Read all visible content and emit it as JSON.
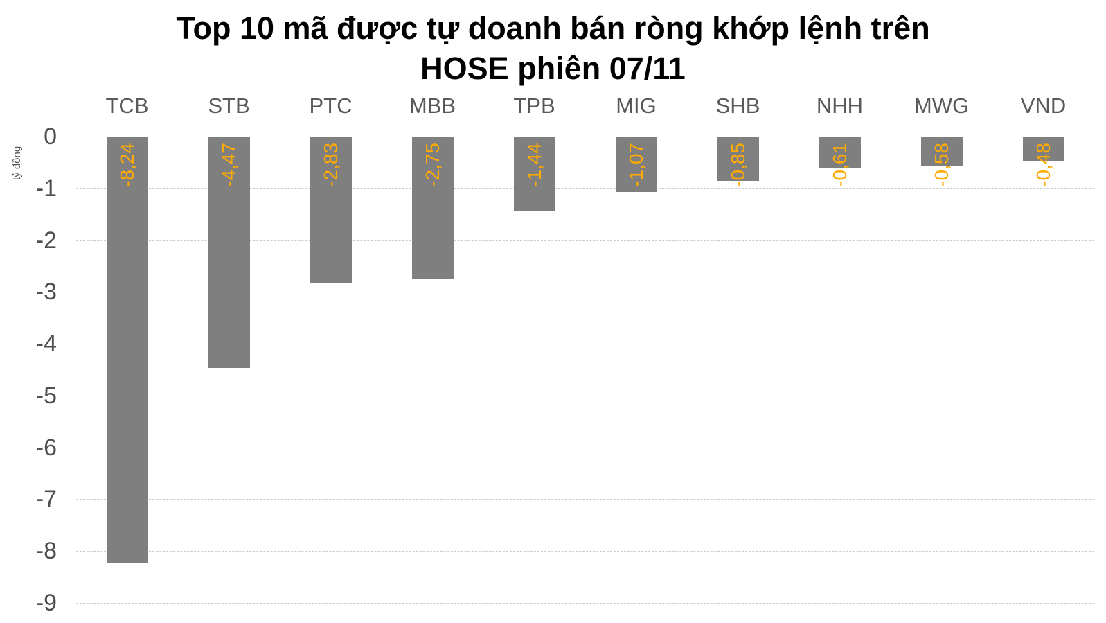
{
  "chart_data": {
    "type": "bar",
    "orientation": "vertical",
    "title": "Top 10 mã được tự doanh bán ròng khớp lệnh trên HOSE phiên 07/11",
    "title_lines": [
      "Top 10 mã được tự doanh bán ròng khớp lệnh trên",
      "HOSE phiên 07/11"
    ],
    "ylabel": "tỷ đồng",
    "xlabel": "",
    "categories": [
      "TCB",
      "STB",
      "PTC",
      "MBB",
      "TPB",
      "MIG",
      "SHB",
      "NHH",
      "MWG",
      "VND"
    ],
    "values": [
      -8.24,
      -4.47,
      -2.83,
      -2.75,
      -1.44,
      -1.07,
      -0.85,
      -0.61,
      -0.58,
      -0.48
    ],
    "value_labels": [
      "-8,24",
      "-4,47",
      "-2,83",
      "-2,75",
      "-1,44",
      "-1,07",
      "-0,85",
      "-0,61",
      "-0,58",
      "-0,48"
    ],
    "ylim": [
      -9,
      0
    ],
    "yticks": [
      0,
      -1,
      -2,
      -3,
      -4,
      -5,
      -6,
      -7,
      -8,
      -9
    ],
    "ytick_labels": [
      "0",
      "-1",
      "-2",
      "-3",
      "-4",
      "-5",
      "-6",
      "-7",
      "-8",
      "-9"
    ],
    "grid": "horizontal-dashed",
    "legend": "none",
    "colors": {
      "bar": "#7F7F7F",
      "value_label": "#FFAB00",
      "category_text": "#58595B",
      "tick_text": "#4F4F4F",
      "title_text": "#000000",
      "gridline": "#C9C9C9",
      "background": "#FFFFFF"
    }
  }
}
